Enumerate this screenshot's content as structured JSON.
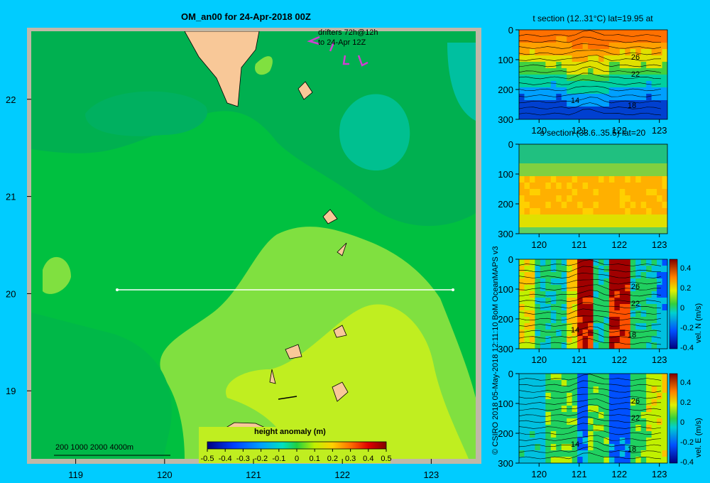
{
  "main_title": "OM_an00 for 24-Apr-2018 00Z",
  "drifters_line1": "drifters 72h@12h",
  "drifters_line2": "to 24-Apr 12Z",
  "depth_scale_label": "200  1000  2000  4000m",
  "credit": "© CSIRO 2018   05-May-2018 12:11:10 BoM OceanMAPS v3",
  "map": {
    "lat_ticks": [
      "22",
      "21",
      "20",
      "19"
    ],
    "lon_ticks": [
      "119",
      "120",
      "121",
      "122",
      "123"
    ],
    "colorbar_title": "height anomaly  (m)",
    "colorbar_ticks": [
      "-0.5",
      "-0.4",
      "-0.3",
      "-0.2",
      "-0.1",
      "0",
      "0.1",
      "0.2",
      "0.3",
      "0.4",
      "0.5"
    ]
  },
  "panels": [
    {
      "title": "t section (12..31°C) lat=19.95 at",
      "contour_labels": [
        "26",
        "22",
        "14",
        "18"
      ],
      "cb_label": "",
      "cb_ticks": []
    },
    {
      "title": "s section (33.6..35.5) lat=20",
      "contour_labels": [],
      "cb_label": "",
      "cb_ticks": []
    },
    {
      "title": "",
      "contour_labels": [
        "26",
        "22",
        "14",
        "18"
      ],
      "cb_label": "vel. N (m/s)",
      "cb_ticks": [
        "0.4",
        "0.2",
        "0",
        "-0.2",
        "-0.4"
      ]
    },
    {
      "title": "",
      "contour_labels": [
        "26",
        "22",
        "14",
        "18"
      ],
      "cb_label": "vel. E (m/s)",
      "cb_ticks": [
        "0.4",
        "0.2",
        "0",
        "-0.2",
        "-0.4"
      ]
    }
  ],
  "panel_depth_ticks": [
    "0",
    "100",
    "200",
    "300"
  ],
  "panel_lon_ticks": [
    "120",
    "121",
    "122",
    "123"
  ],
  "chart_data": [
    {
      "type": "heatmap",
      "title": "OM_an00 for 24-Apr-2018 00Z",
      "variable": "height anomaly (m)",
      "x_ticks": [
        119,
        120,
        121,
        122,
        123
      ],
      "y_ticks": [
        19,
        20,
        21,
        22
      ],
      "xlim": [
        118.5,
        123.5
      ],
      "ylim": [
        18.3,
        22.7
      ],
      "colorbar_range": [
        -0.5,
        0.5
      ],
      "section_line": {
        "lat": 20,
        "lon_from": 119.5,
        "lon_to": 123.2
      }
    },
    {
      "type": "heatmap",
      "title": "t section (12..31°C) lat=19.95 at",
      "ylim": [
        300,
        0
      ],
      "xlim": [
        119.5,
        123.2
      ],
      "range": [
        12,
        31
      ]
    },
    {
      "type": "heatmap",
      "title": "s section (33.6..35.5) lat=20",
      "ylim": [
        300,
        0
      ],
      "xlim": [
        119.5,
        123.2
      ],
      "range": [
        33.6,
        35.5
      ]
    },
    {
      "type": "heatmap",
      "title": "vel. N (m/s)",
      "ylim": [
        300,
        0
      ],
      "xlim": [
        119.5,
        123.2
      ],
      "range": [
        -0.4,
        0.4
      ]
    },
    {
      "type": "heatmap",
      "title": "vel. E (m/s)",
      "ylim": [
        300,
        0
      ],
      "xlim": [
        119.5,
        123.2
      ],
      "range": [
        -0.4,
        0.4
      ]
    }
  ]
}
